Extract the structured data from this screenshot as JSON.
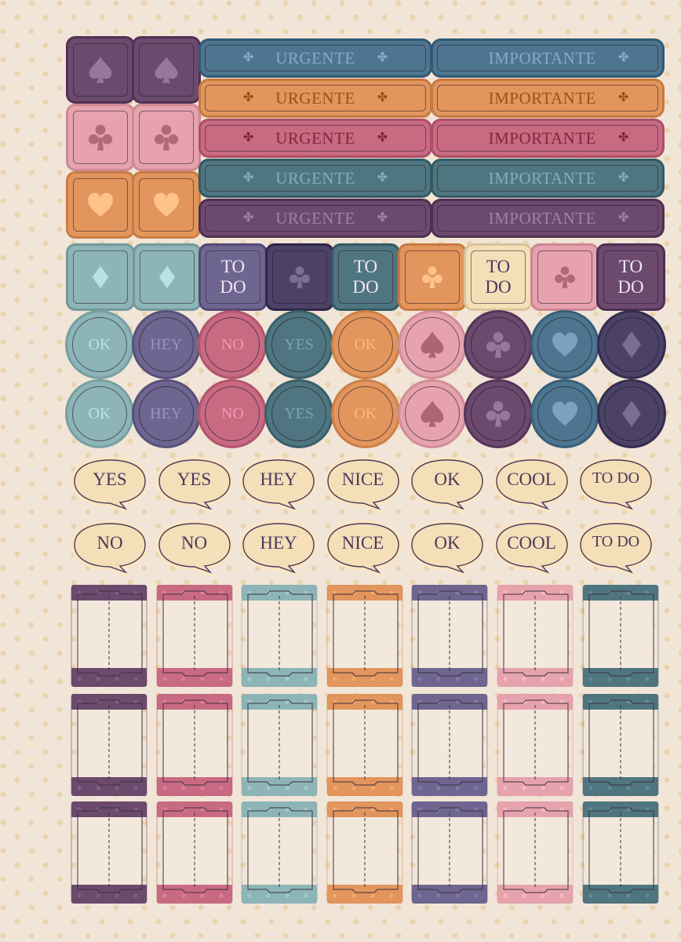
{
  "colors": {
    "plum": "#6b4a6e",
    "slate_violet": "#6e6690",
    "rose": "#c96a83",
    "pink": "#e6a3ad",
    "orange": "#e2955c",
    "teal": "#4f7680",
    "aqua": "#8db5b8",
    "steel_blue": "#4d7590",
    "deep_indigo": "#4b4266",
    "cream": "#f4dfb8",
    "ink": "#4a3a5e"
  },
  "suit_squares": [
    {
      "suit": "spade-icon",
      "color": "plum"
    },
    {
      "suit": "spade-icon",
      "color": "plum"
    },
    {
      "suit": "club-icon",
      "color": "pink"
    },
    {
      "suit": "club-icon",
      "color": "pink"
    },
    {
      "suit": "heart-icon",
      "color": "orange"
    },
    {
      "suit": "heart-icon",
      "color": "orange"
    }
  ],
  "banners": {
    "left_label": "URGENTE",
    "right_label": "IMPORTANTE",
    "rows": [
      "steel_blue",
      "orange",
      "rose",
      "teal",
      "plum"
    ]
  },
  "todo_row": {
    "todo_label_top": "TO",
    "todo_label_bottom": "DO",
    "items": [
      {
        "type": "suit",
        "suit": "diamond-icon",
        "color": "aqua"
      },
      {
        "type": "suit",
        "suit": "diamond-icon",
        "color": "aqua"
      },
      {
        "type": "text",
        "color": "slate_violet"
      },
      {
        "type": "suit",
        "suit": "club-icon",
        "color": "deep_indigo"
      },
      {
        "type": "text",
        "color": "teal"
      },
      {
        "type": "suit",
        "suit": "club-icon",
        "color": "orange"
      },
      {
        "type": "text",
        "color": "cream"
      },
      {
        "type": "suit",
        "suit": "club-icon",
        "color": "pink"
      },
      {
        "type": "text",
        "color": "plum"
      }
    ]
  },
  "circle_rows": [
    {
      "items": [
        {
          "label": "OK",
          "color": "aqua"
        },
        {
          "label": "HEY",
          "color": "slate_violet"
        },
        {
          "label": "NO",
          "color": "rose"
        },
        {
          "label": "YES",
          "color": "teal"
        },
        {
          "label": "OK",
          "color": "orange"
        },
        {
          "suit": "spade-icon",
          "color": "pink"
        },
        {
          "suit": "club-icon",
          "color": "plum"
        },
        {
          "suit": "heart-icon",
          "color": "steel_blue"
        },
        {
          "suit": "diamond-icon",
          "color": "deep_indigo"
        }
      ]
    },
    {
      "items": [
        {
          "label": "OK",
          "color": "aqua"
        },
        {
          "label": "HEY",
          "color": "slate_violet"
        },
        {
          "label": "NO",
          "color": "rose"
        },
        {
          "label": "YES",
          "color": "teal"
        },
        {
          "label": "OK",
          "color": "orange"
        },
        {
          "suit": "spade-icon",
          "color": "pink"
        },
        {
          "suit": "club-icon",
          "color": "plum"
        },
        {
          "suit": "heart-icon",
          "color": "steel_blue"
        },
        {
          "suit": "diamond-icon",
          "color": "deep_indigo"
        }
      ]
    }
  ],
  "bubble_rows": [
    [
      "YES",
      "YES",
      "HEY",
      "NICE",
      "OK",
      "COOL",
      "TO DO"
    ],
    [
      "NO",
      "NO",
      "HEY",
      "NICE",
      "OK",
      "COOL",
      "TO DO"
    ]
  ],
  "ticket_colors": [
    "plum",
    "rose",
    "aqua",
    "orange",
    "slate_violet",
    "pink",
    "teal"
  ]
}
